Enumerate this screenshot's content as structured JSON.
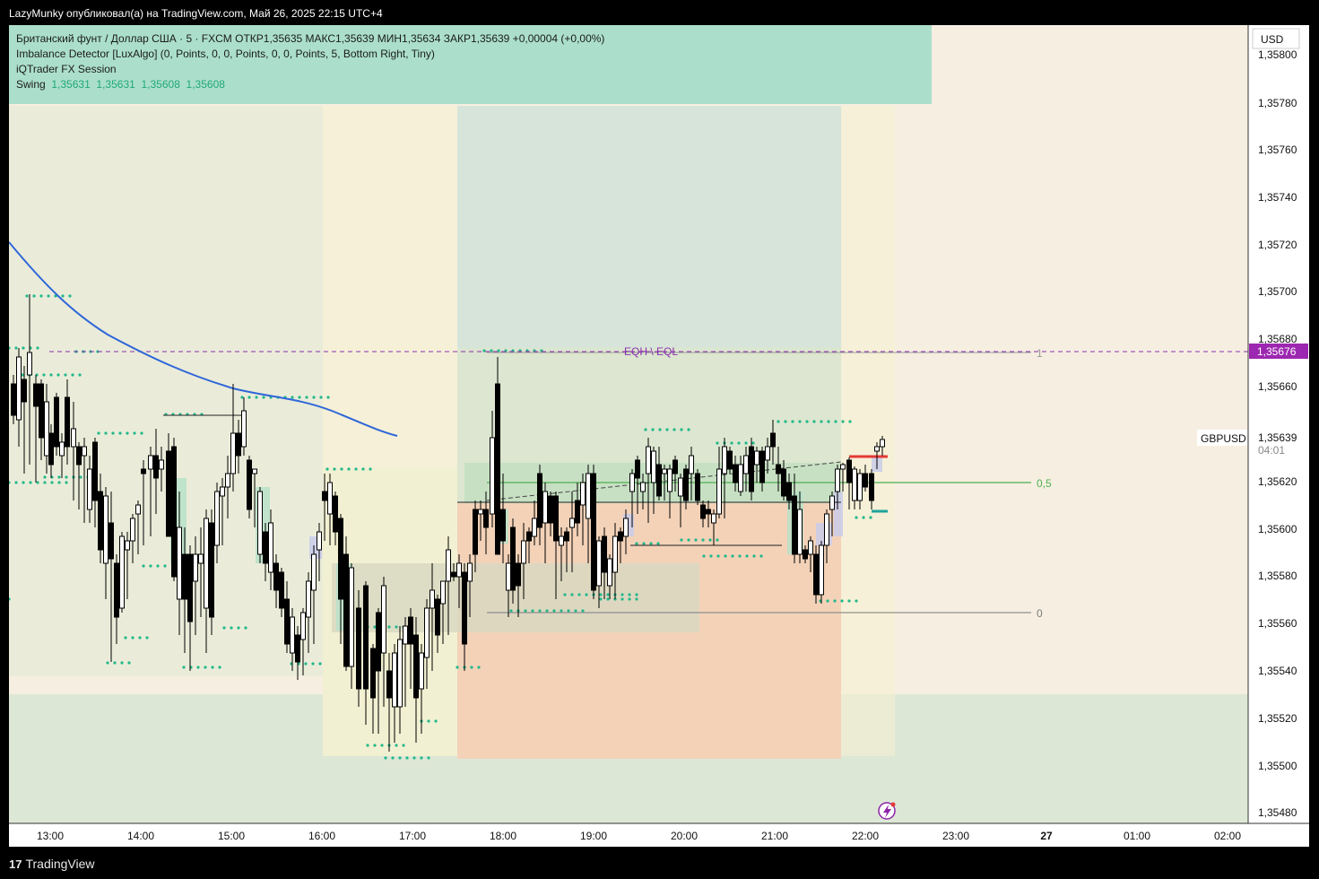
{
  "header": {
    "publisher_line": "LazyMunky опубликовал(а) на TradingView.com, Май 26, 2025 22:15 UTC+4"
  },
  "legend": {
    "symbol_line": "Британский фунт / Доллар США · 5 · FXCM  ОТКР1,35635  МАКС1,35639  МИН1,35634  ЗАКР1,35639  +0,00004 (+0,00%)",
    "indicator_1": "Imbalance Detector [LuxAlgo] (0, Points, 0, 0, Points, 0, 0, Points, 5, Bottom Right, Tiny)",
    "indicator_2": "iQTrader FX Session",
    "swing_label": "Swing",
    "swing_values": [
      "1,35631",
      "1,35631",
      "1,35608",
      "1,35608"
    ]
  },
  "price_axis": {
    "currency": "USD",
    "ticks": [
      "1,35800",
      "1,35780",
      "1,35760",
      "1,35740",
      "1,35720",
      "1,35700",
      "1,35680",
      "1,35660",
      "1,35639",
      "1,35620",
      "1,35600",
      "1,35580",
      "1,35560",
      "1,35540",
      "1,35520",
      "1,35500",
      "1,35480"
    ],
    "eq_price_label": "1,35676",
    "current_price": "1,35639",
    "countdown": "04:01",
    "symbol_tag": "GBPUSD"
  },
  "time_axis": {
    "ticks": [
      "13:00",
      "14:00",
      "15:00",
      "16:00",
      "17:00",
      "18:00",
      "19:00",
      "20:00",
      "21:00",
      "22:00",
      "23:00",
      "27",
      "01:00",
      "02:00"
    ]
  },
  "annotations": {
    "eqh_label": "EQH \\ EQL",
    "fib_1": "1",
    "fib_05": "0,5",
    "fib_0": "0"
  },
  "footer": {
    "brand": "TradingView"
  },
  "colors": {
    "bull_body": "#ffffff",
    "bear_body": "#000000",
    "ma_line": "#2f66d9",
    "swing_dots": "#22b88a",
    "eq_line": "#8c2fb0",
    "fib_mid": "#4caf50",
    "price_tag_bg": "#9c27b0"
  },
  "chart_data": {
    "type": "candlestick",
    "symbol": "GBPUSD",
    "timeframe": "5",
    "price_range": [
      1.3547,
      1.3581
    ],
    "last": {
      "open": 1.35635,
      "high": 1.35639,
      "low": 1.35634,
      "close": 1.35639
    },
    "levels": {
      "eqh": 1.35676,
      "fib_1": 1.35676,
      "fib_05": 1.3562,
      "fib_0": 1.35565
    }
  }
}
